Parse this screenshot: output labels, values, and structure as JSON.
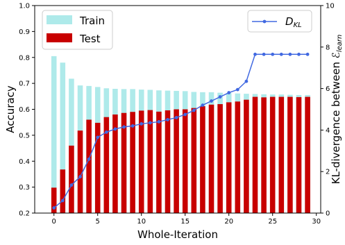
{
  "chart_data": {
    "type": "bar",
    "xlabel": "Whole-Iteration",
    "ylabel": "Accuracy",
    "y2label": "KL-divergence between ℰ",
    "y2label_sub": "learn",
    "xlim": [
      -2.2,
      30.5
    ],
    "ylim": [
      0.2,
      1.0
    ],
    "y2lim": [
      0,
      10
    ],
    "x_ticks": [
      0,
      5,
      10,
      15,
      20,
      25,
      30
    ],
    "y_ticks": [
      0.2,
      0.3,
      0.4,
      0.5,
      0.6,
      0.7,
      0.8,
      0.9,
      1.0
    ],
    "y2_ticks": [
      0,
      2,
      4,
      6,
      8,
      10
    ],
    "x": [
      0,
      1,
      2,
      3,
      4,
      5,
      6,
      7,
      8,
      9,
      10,
      11,
      12,
      13,
      14,
      15,
      16,
      17,
      18,
      19,
      20,
      21,
      22,
      23,
      24,
      25,
      26,
      27,
      28,
      29
    ],
    "series": [
      {
        "name": "Train",
        "kind": "bar",
        "color": "#aeeaea",
        "values": [
          0.805,
          0.78,
          0.718,
          0.692,
          0.69,
          0.686,
          0.681,
          0.679,
          0.678,
          0.678,
          0.676,
          0.675,
          0.673,
          0.672,
          0.671,
          0.67,
          0.667,
          0.666,
          0.666,
          0.664,
          0.663,
          0.661,
          0.66,
          0.659,
          0.658,
          0.657,
          0.657,
          0.656,
          0.655,
          0.655
        ]
      },
      {
        "name": "Test",
        "kind": "bar",
        "color": "#c80000",
        "values": [
          0.298,
          0.368,
          0.46,
          0.518,
          0.56,
          0.548,
          0.57,
          0.58,
          0.586,
          0.59,
          0.595,
          0.597,
          0.591,
          0.596,
          0.6,
          0.6,
          0.605,
          0.612,
          0.618,
          0.62,
          0.627,
          0.63,
          0.637,
          0.648,
          0.646,
          0.648,
          0.648,
          0.648,
          0.647,
          0.648
        ]
      },
      {
        "name": "D",
        "name_sub": "KL",
        "kind": "line",
        "axis": "right",
        "color": "#4169e1",
        "values": [
          0.25,
          0.6,
          1.35,
          1.75,
          2.6,
          3.65,
          3.9,
          4.05,
          4.15,
          4.2,
          4.3,
          4.35,
          4.4,
          4.5,
          4.6,
          4.75,
          4.95,
          5.2,
          5.4,
          5.6,
          5.8,
          5.95,
          6.35,
          7.65,
          7.65,
          7.65,
          7.65,
          7.65,
          7.65,
          7.65
        ]
      }
    ],
    "legend_left": "upper-left",
    "legend_right": "upper-right",
    "grid": false
  }
}
